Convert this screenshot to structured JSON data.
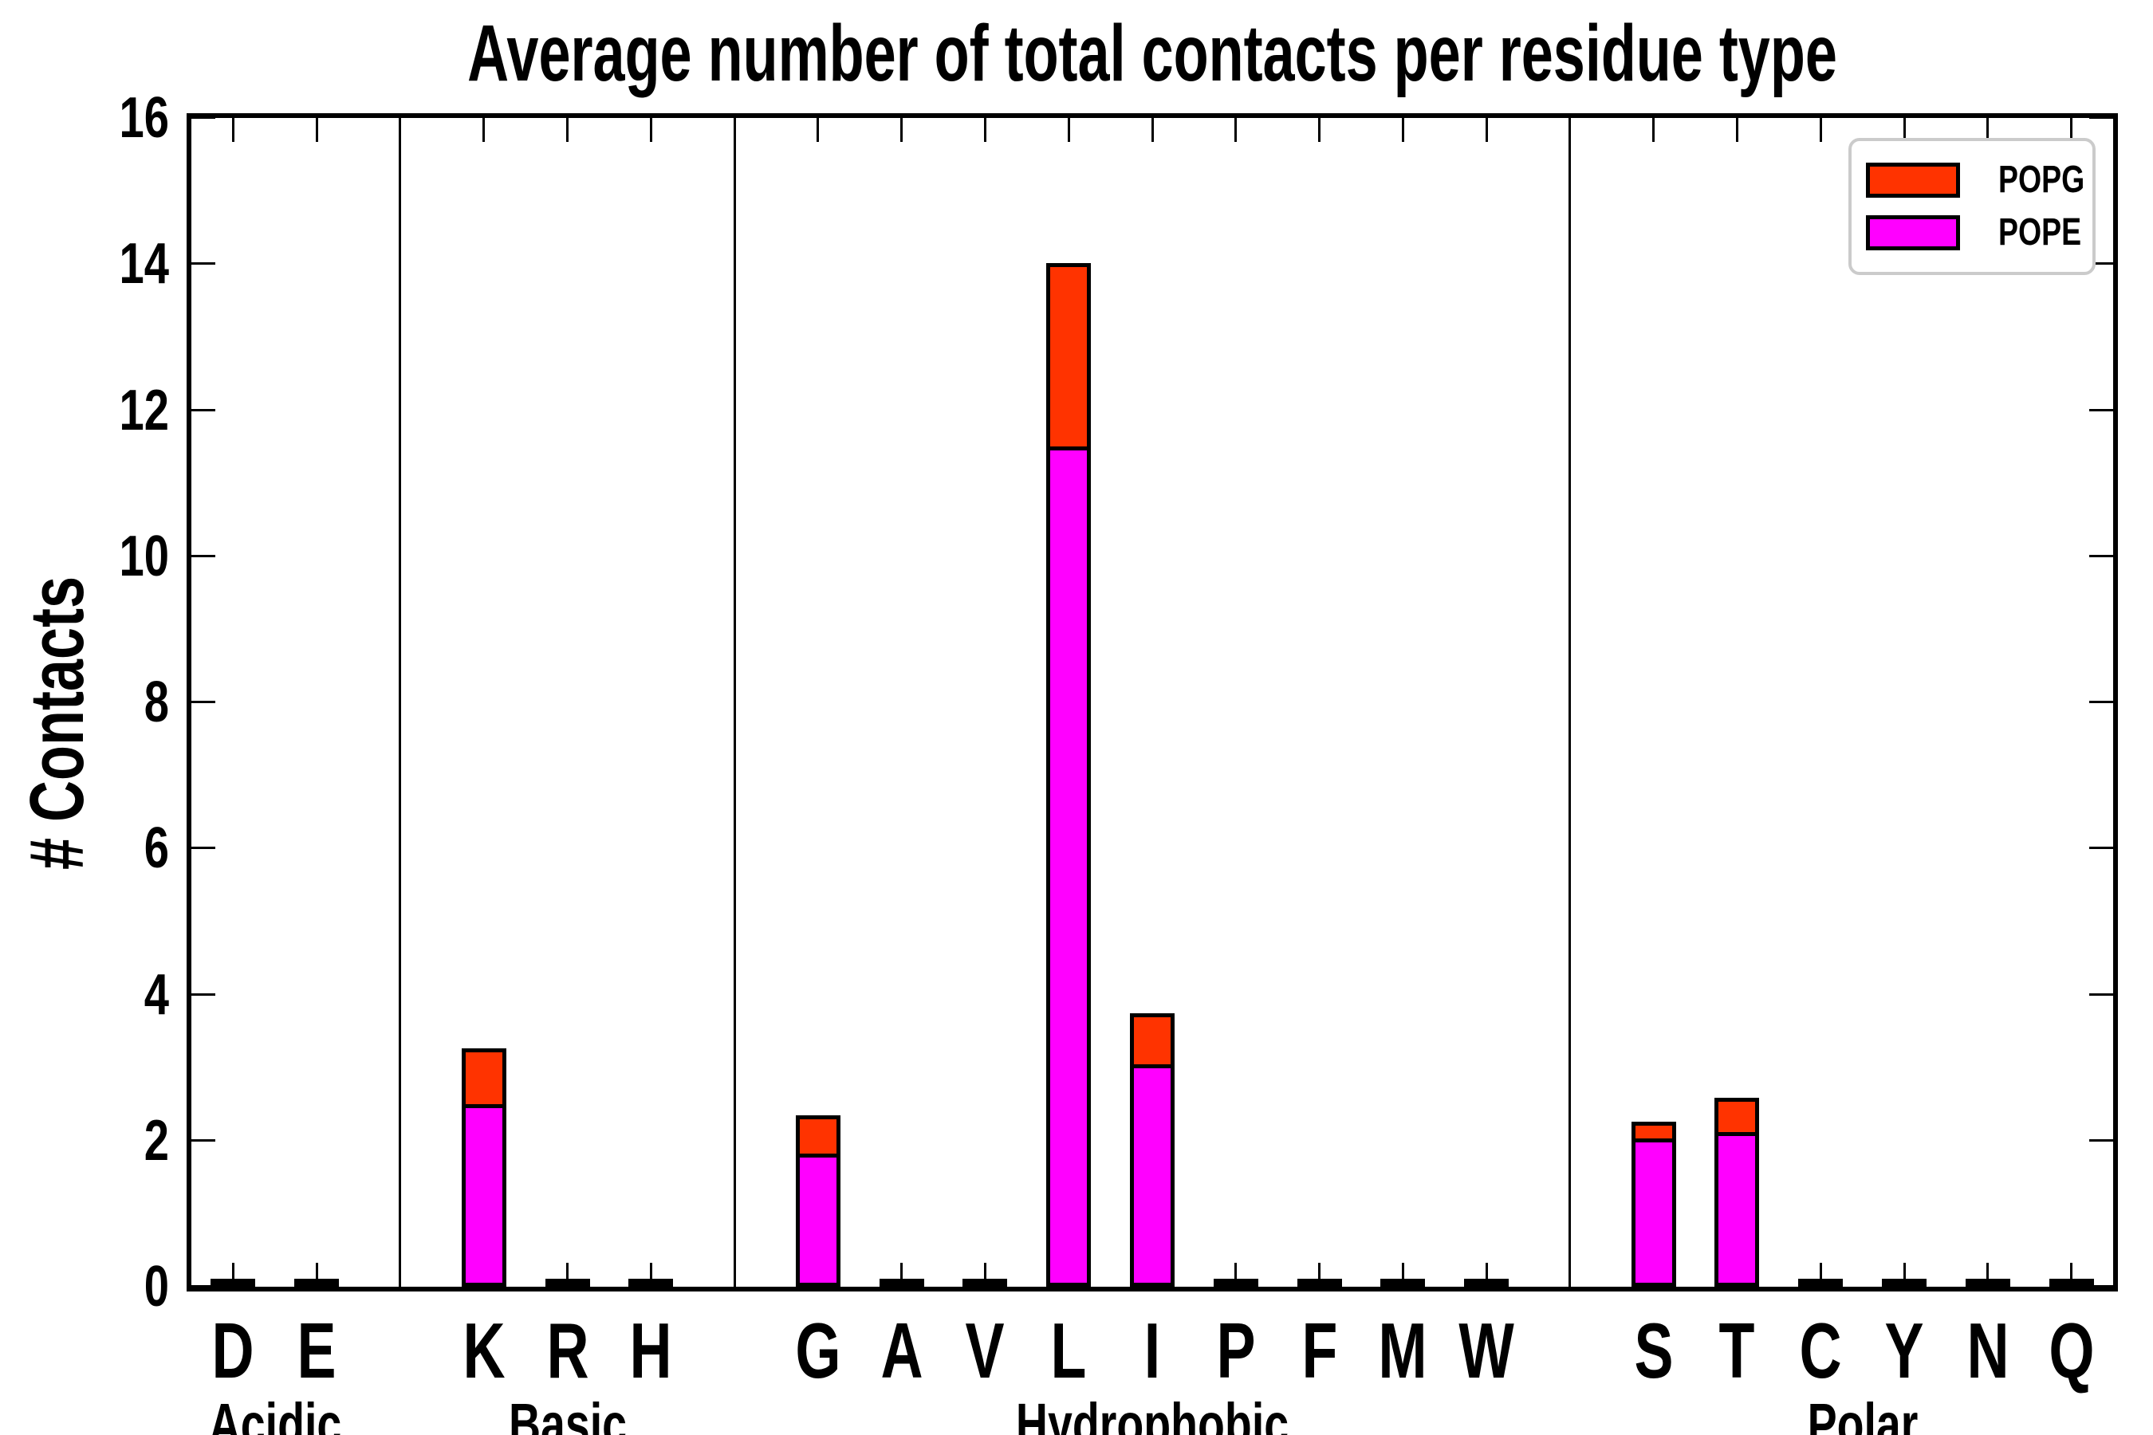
{
  "title": "Average number of total contacts per residue type",
  "ylabel": "# Contacts",
  "legend": {
    "border_color": "#cbcbcb",
    "items": [
      {
        "label": "POPG",
        "color": "#ff3300"
      },
      {
        "label": "POPE",
        "color": "#ff00ff"
      }
    ]
  },
  "chart_data": {
    "type": "bar",
    "stacked": true,
    "title": "Average number of total contacts per residue type",
    "ylabel": "# Contacts",
    "xlabel": "",
    "ylim": [
      0,
      16
    ],
    "yticks": [
      0,
      2,
      4,
      6,
      8,
      10,
      12,
      14,
      16
    ],
    "grid": false,
    "legend_position": "upper right",
    "groups": [
      {
        "label": "Acidic",
        "residues": [
          "D",
          "E"
        ]
      },
      {
        "label": "Basic",
        "residues": [
          "K",
          "R",
          "H"
        ]
      },
      {
        "label": "Hydrophobic",
        "residues": [
          "G",
          "A",
          "V",
          "L",
          "I",
          "P",
          "F",
          "M",
          "W"
        ]
      },
      {
        "label": "Polar",
        "residues": [
          "S",
          "T",
          "C",
          "Y",
          "N",
          "Q"
        ]
      }
    ],
    "categories": [
      "D",
      "E",
      "K",
      "R",
      "H",
      "G",
      "A",
      "V",
      "L",
      "I",
      "P",
      "F",
      "M",
      "W",
      "S",
      "T",
      "C",
      "Y",
      "N",
      "Q"
    ],
    "series": [
      {
        "name": "POPE",
        "color": "#ff00ff",
        "values": [
          0.03,
          0.03,
          2.5,
          0.03,
          0.03,
          1.82,
          0.03,
          0.03,
          11.5,
          3.05,
          0.03,
          0.03,
          0.03,
          0.03,
          2.03,
          2.12,
          0.03,
          0.03,
          0.03,
          0.03
        ]
      },
      {
        "name": "POPG",
        "color": "#ff3300",
        "values": [
          0,
          0,
          0.82,
          0,
          0,
          0.58,
          0,
          0,
          2.57,
          0.75,
          0,
          0,
          0,
          0,
          0.28,
          0.52,
          0,
          0,
          0,
          0
        ]
      }
    ]
  }
}
